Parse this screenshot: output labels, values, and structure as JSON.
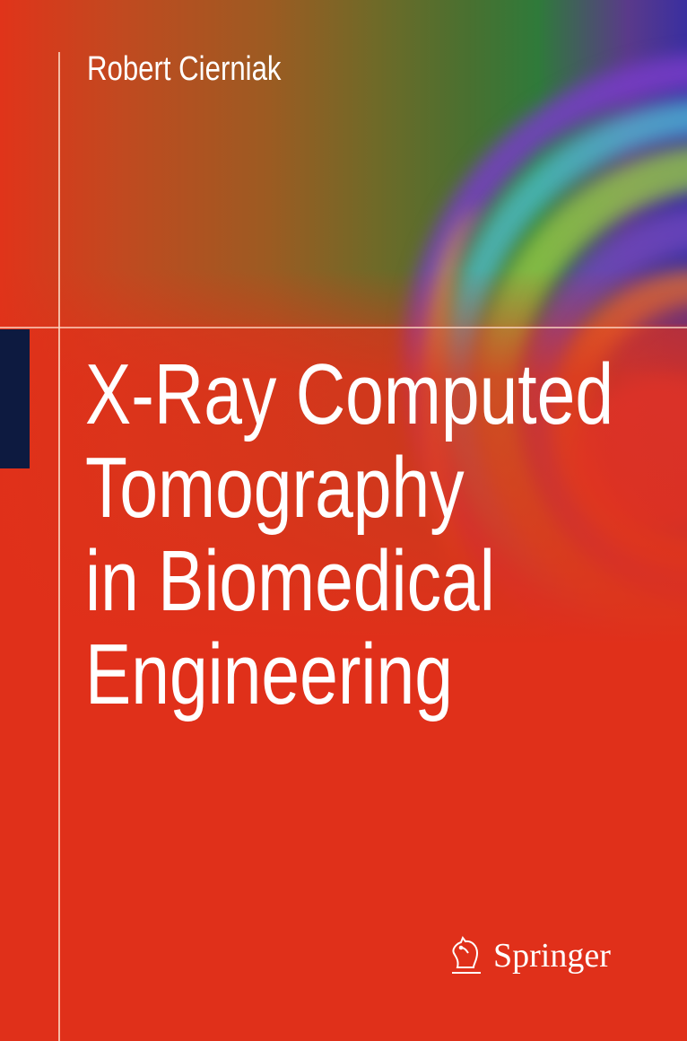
{
  "author": "Robert Cierniak",
  "title_lines": [
    "X-Ray Computed",
    "Tomography",
    "in Biomedical",
    "Engineering"
  ],
  "publisher": {
    "name": "Springer",
    "logo_icon": "knight-horse-icon"
  },
  "colors": {
    "background": "#e0301a",
    "accent_bar": "#0d1a40",
    "text": "#ffffff"
  }
}
